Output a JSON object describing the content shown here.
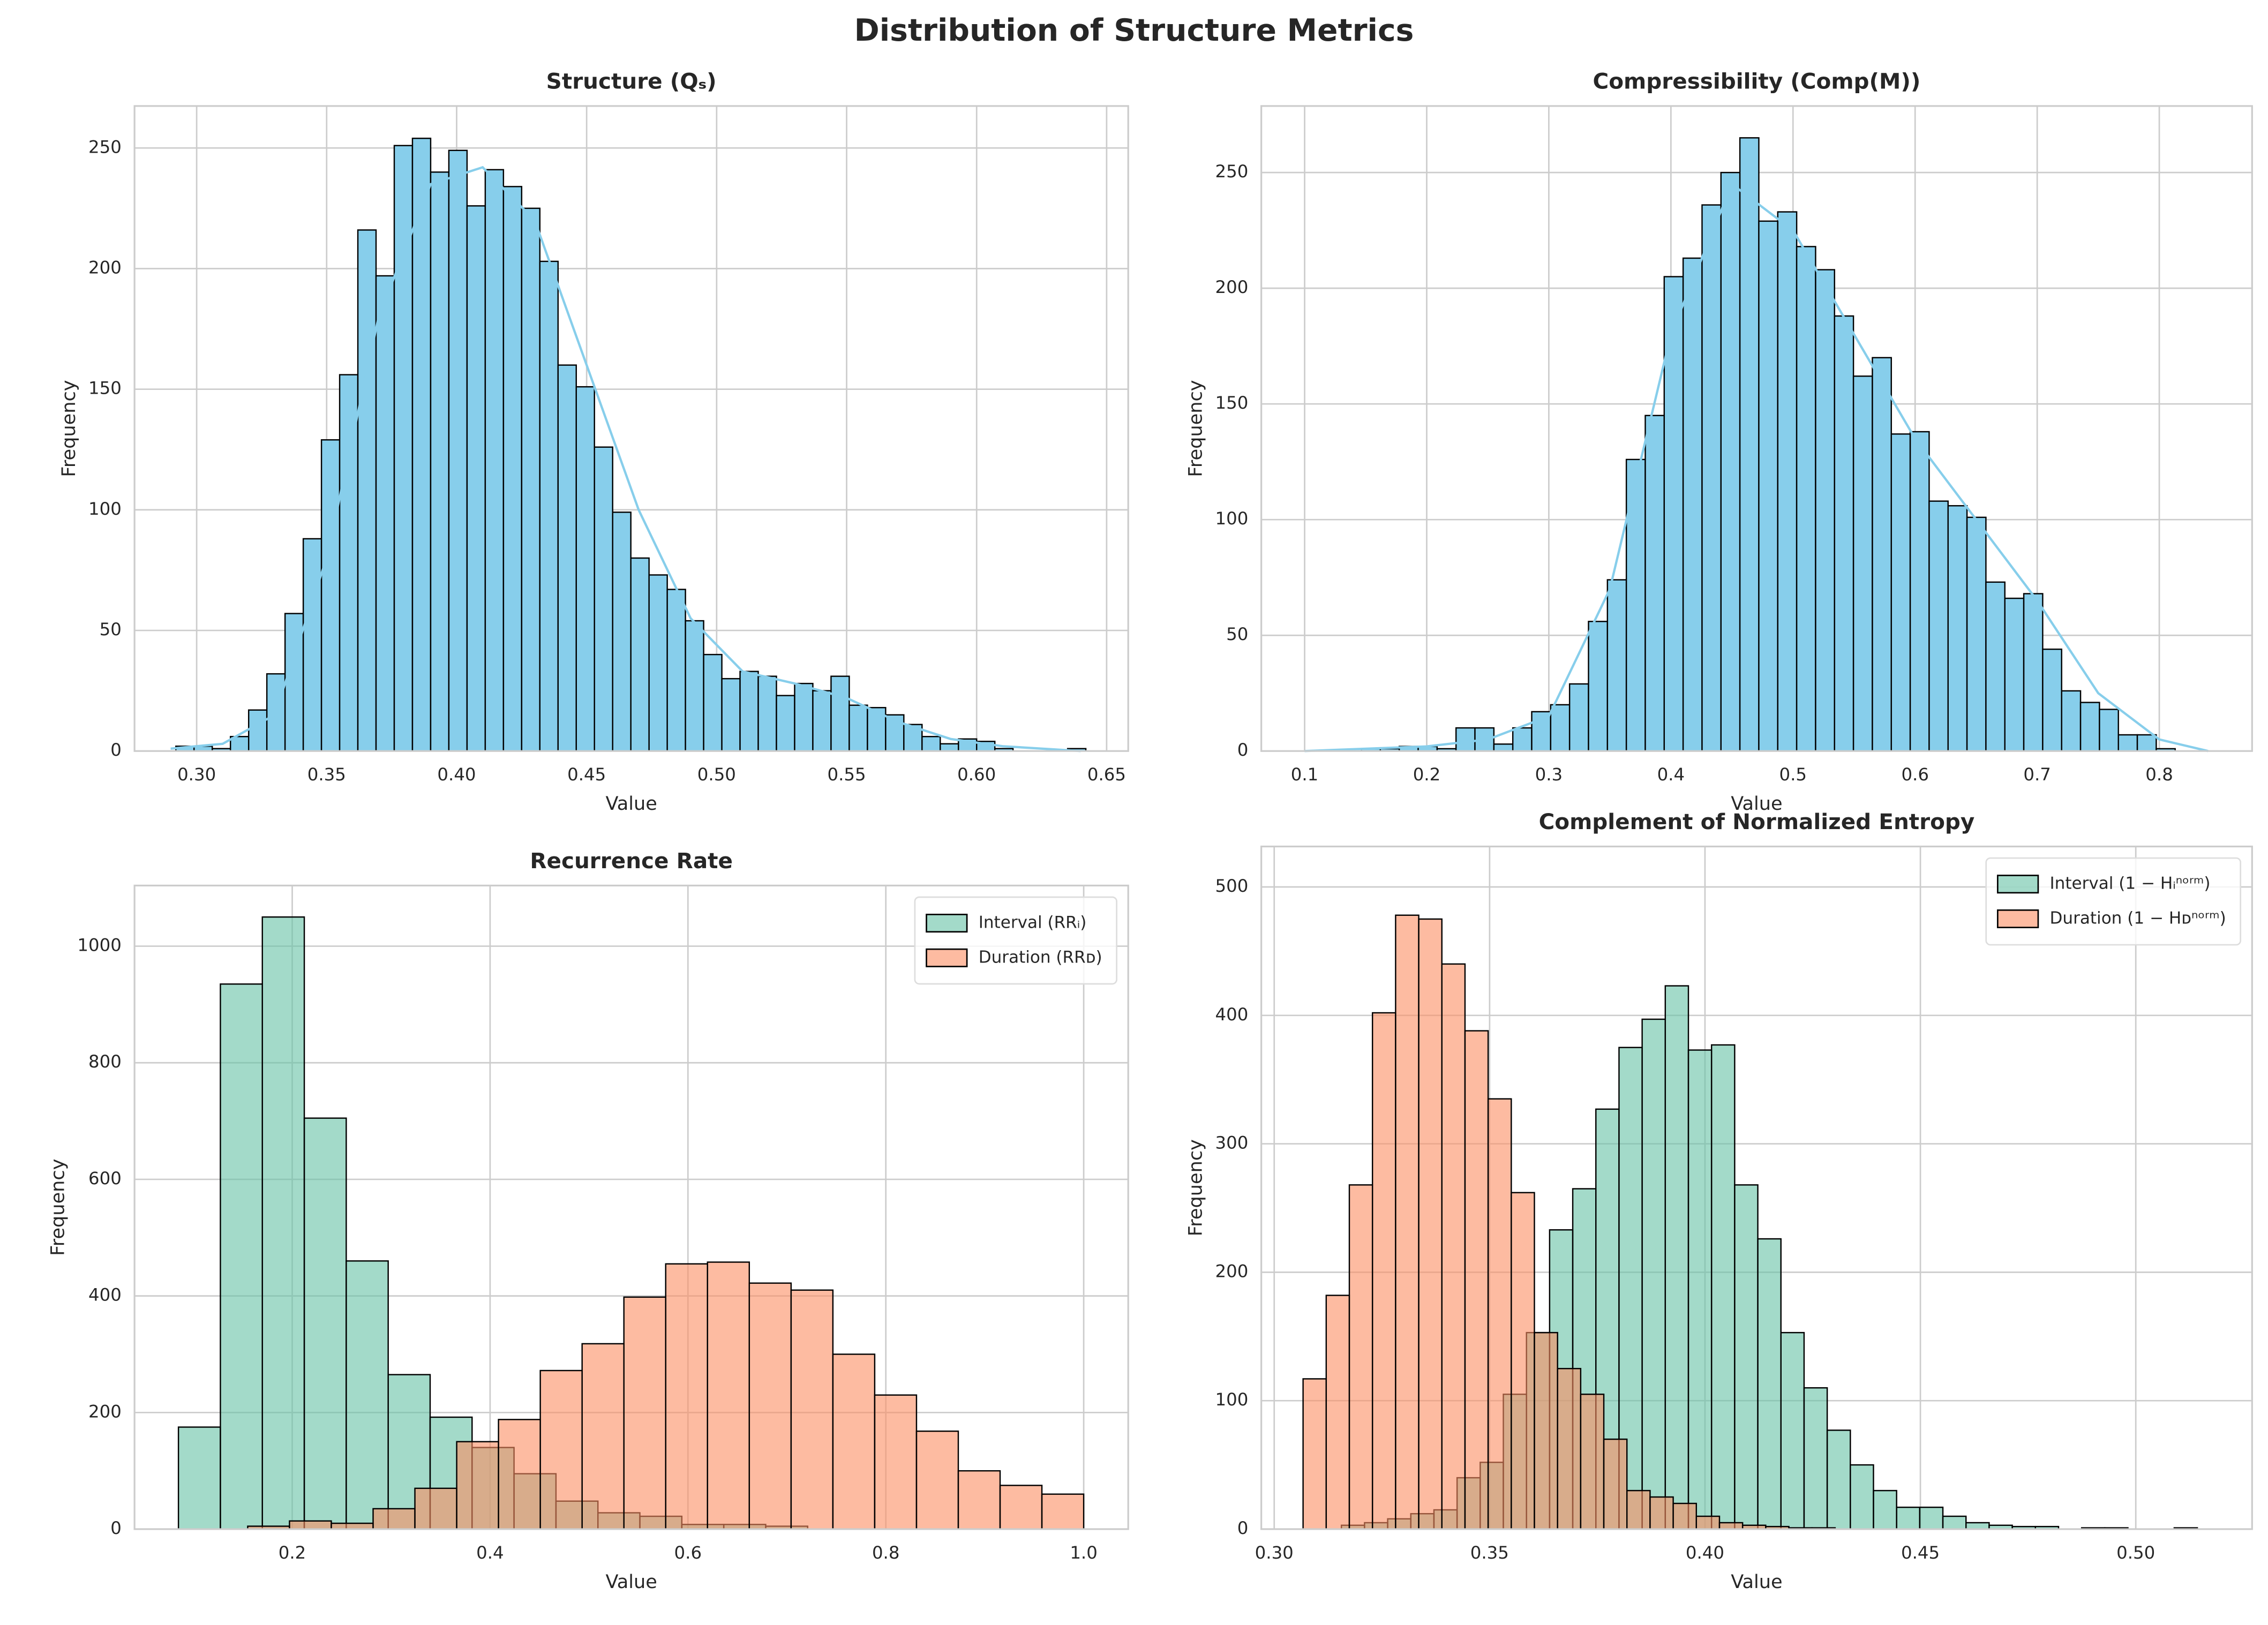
{
  "title": "Distribution of Structure Metrics",
  "chart_data": [
    {
      "type": "histogram",
      "title": "Structure (Qₛ)",
      "xlabel": "Value",
      "ylabel": "Frequency",
      "xlim": [
        0.2761,
        0.6583
      ],
      "ylim": [
        0,
        267.4
      ],
      "xticks": [
        {
          "value": 0.3,
          "label": "0.30"
        },
        0.35,
        {
          "value": 0.4,
          "label": "0.40"
        },
        0.45,
        {
          "value": 0.5,
          "label": "0.50"
        },
        0.55,
        {
          "value": 0.6,
          "label": "0.60"
        },
        0.65
      ],
      "yticks": [
        0,
        50,
        100,
        150,
        200,
        250
      ],
      "grid": true,
      "color": "#87ceeb",
      "bins": [
        0.292,
        0.299,
        0.306,
        0.313,
        0.32,
        0.327,
        0.334,
        0.341,
        0.348,
        0.355,
        0.362,
        0.369,
        0.376,
        0.383,
        0.39,
        0.397,
        0.404,
        0.411,
        0.418,
        0.425,
        0.432,
        0.439,
        0.446,
        0.453,
        0.46,
        0.467,
        0.474,
        0.481,
        0.488,
        0.495,
        0.502,
        0.509,
        0.516,
        0.523,
        0.53,
        0.537,
        0.544,
        0.551,
        0.558,
        0.565,
        0.572,
        0.579,
        0.586,
        0.593,
        0.6,
        0.607,
        0.614,
        0.621,
        0.628,
        0.635,
        0.642
      ],
      "values": [
        2,
        2,
        1,
        6,
        17,
        32,
        57,
        88,
        129,
        156,
        216,
        197,
        251,
        254,
        240,
        249,
        226,
        241,
        234,
        225,
        203,
        160,
        151,
        126,
        99,
        80,
        73,
        67,
        54,
        40,
        30,
        33,
        31,
        23,
        28,
        25,
        31,
        19,
        18,
        15,
        11,
        6,
        3,
        5,
        4,
        1,
        0,
        0,
        0,
        1
      ],
      "kde": {
        "x": [
          0.29,
          0.31,
          0.33,
          0.35,
          0.37,
          0.39,
          0.41,
          0.43,
          0.45,
          0.47,
          0.49,
          0.51,
          0.53,
          0.55,
          0.57,
          0.59,
          0.61,
          0.64
        ],
        "y": [
          1,
          3,
          15,
          80,
          180,
          235,
          242,
          220,
          160,
          100,
          55,
          33,
          28,
          22,
          12,
          5,
          2,
          0
        ]
      }
    },
    {
      "type": "histogram",
      "title": "Compressibility (Comp(M))",
      "xlabel": "Value",
      "ylabel": "Frequency",
      "xlim": [
        0.0645,
        0.876
      ],
      "ylim": [
        0,
        278.75
      ],
      "xticks": [
        0.1,
        0.2,
        0.3,
        0.4,
        0.5,
        0.6,
        0.7,
        0.8
      ],
      "yticks": [
        0,
        50,
        100,
        150,
        200,
        250
      ],
      "grid": true,
      "color": "#87ceeb",
      "bins": [
        0.1,
        0.1155,
        0.131,
        0.1465,
        0.162,
        0.1775,
        0.193,
        0.2085,
        0.224,
        0.2395,
        0.255,
        0.2705,
        0.286,
        0.3015,
        0.317,
        0.3325,
        0.348,
        0.3635,
        0.379,
        0.3945,
        0.41,
        0.4255,
        0.441,
        0.4565,
        0.472,
        0.4875,
        0.503,
        0.5185,
        0.534,
        0.5495,
        0.565,
        0.5805,
        0.596,
        0.6115,
        0.627,
        0.6425,
        0.658,
        0.6735,
        0.689,
        0.7045,
        0.72,
        0.7355,
        0.751,
        0.7665,
        0.782,
        0.7975,
        0.813,
        0.8285,
        0.844
      ],
      "values": [
        0,
        0,
        0,
        1,
        1,
        2,
        2,
        1,
        10,
        10,
        3,
        10,
        17,
        20,
        29,
        56,
        74,
        126,
        145,
        205,
        213,
        236,
        250,
        265,
        229,
        233,
        218,
        208,
        188,
        162,
        170,
        137,
        138,
        108,
        106,
        101,
        73,
        66,
        68,
        44,
        26,
        21,
        18,
        7,
        7,
        1,
        0,
        0
      ],
      "kde": {
        "x": [
          0.1,
          0.2,
          0.25,
          0.3,
          0.35,
          0.4,
          0.45,
          0.5,
          0.55,
          0.6,
          0.65,
          0.7,
          0.75,
          0.8,
          0.84
        ],
        "y": [
          0,
          2,
          5,
          15,
          70,
          180,
          245,
          225,
          180,
          135,
          100,
          65,
          25,
          5,
          0
        ]
      }
    },
    {
      "type": "histogram",
      "title": "Recurrence Rate",
      "xlabel": "Value",
      "ylabel": "Frequency",
      "xlim": [
        0.0406,
        1.045
      ],
      "ylim": [
        0,
        1104
      ],
      "xticks": [
        0.2,
        0.4,
        0.6,
        0.8,
        {
          "value": 1.0,
          "label": "1.0"
        }
      ],
      "yticks": [
        0,
        200,
        400,
        600,
        800,
        1000
      ],
      "grid": true,
      "legend": "upper right",
      "alpha": 0.6,
      "series": [
        {
          "name": "Interval (RRᵢ)",
          "color": "#66c2a5",
          "bins": [
            0.085,
            0.1274,
            0.1698,
            0.2122,
            0.2546,
            0.297,
            0.3394,
            0.3818,
            0.4242,
            0.4666,
            0.509,
            0.5514,
            0.5938,
            0.6362,
            0.6786,
            0.721
          ],
          "values": [
            175,
            935,
            1050,
            705,
            460,
            265,
            192,
            140,
            95,
            48,
            28,
            22,
            8,
            8,
            5
          ]
        },
        {
          "name": "Duration (RRᴅ)",
          "color": "#fc8d62",
          "bins": [
            0.155,
            0.19725,
            0.2395,
            0.28175,
            0.324,
            0.36625,
            0.4085,
            0.45075,
            0.493,
            0.53525,
            0.5775,
            0.61975,
            0.662,
            0.70425,
            0.7465,
            0.78875,
            0.831,
            0.87325,
            0.9155,
            0.95775,
            1.0
          ],
          "values": [
            5,
            14,
            10,
            35,
            70,
            150,
            188,
            272,
            318,
            398,
            455,
            458,
            422,
            410,
            300,
            230,
            168,
            100,
            75,
            60
          ]
        }
      ]
    },
    {
      "type": "histogram",
      "title": "Complement of Normalized Entropy",
      "xlabel": "Value",
      "ylabel": "Frequency",
      "xlim": [
        0.297,
        0.527
      ],
      "ylim": [
        0,
        531.5
      ],
      "xticks": [
        {
          "value": 0.3,
          "label": "0.30"
        },
        0.35,
        {
          "value": 0.4,
          "label": "0.40"
        },
        0.45,
        {
          "value": 0.5,
          "label": "0.50"
        }
      ],
      "yticks": [
        0,
        100,
        200,
        300,
        400,
        500
      ],
      "grid": true,
      "legend": "upper right",
      "alpha": 0.6,
      "series": [
        {
          "name": "Interval (1 − Hᵢⁿᵒʳᵐ)",
          "color": "#66c2a5",
          "bins": [
            0.3156,
            0.32097,
            0.32634,
            0.33171,
            0.33708,
            0.34245,
            0.34782,
            0.35319,
            0.35856,
            0.36393,
            0.3693,
            0.37467,
            0.38004,
            0.38541,
            0.39078,
            0.39615,
            0.40152,
            0.40689,
            0.41226,
            0.41763,
            0.423,
            0.42837,
            0.43374,
            0.43911,
            0.44448,
            0.44985,
            0.45522,
            0.46059,
            0.46596,
            0.47133,
            0.4767,
            0.48207,
            0.48744,
            0.49281,
            0.49818,
            0.50355,
            0.50892,
            0.51429
          ],
          "values": [
            3,
            5,
            8,
            12,
            15,
            40,
            52,
            105,
            153,
            233,
            265,
            327,
            375,
            397,
            423,
            373,
            377,
            268,
            226,
            153,
            110,
            77,
            50,
            30,
            17,
            17,
            10,
            5,
            3,
            2,
            2,
            0,
            1,
            1,
            0,
            0,
            1
          ]
        },
        {
          "name": "Duration (1 − Hᴅⁿᵒʳᵐ)",
          "color": "#fc8d62",
          "bins": [
            0.3067,
            0.31207,
            0.31744,
            0.32281,
            0.32818,
            0.33355,
            0.33892,
            0.34429,
            0.34966,
            0.35503,
            0.3604,
            0.36577,
            0.37114,
            0.37651,
            0.38188,
            0.38725,
            0.39262,
            0.39799,
            0.40336,
            0.40873,
            0.4141,
            0.41947,
            0.42484,
            0.43021
          ],
          "values": [
            117,
            182,
            268,
            402,
            478,
            475,
            440,
            388,
            335,
            262,
            153,
            125,
            105,
            70,
            30,
            25,
            20,
            10,
            5,
            3,
            2,
            1,
            1
          ]
        }
      ]
    }
  ]
}
